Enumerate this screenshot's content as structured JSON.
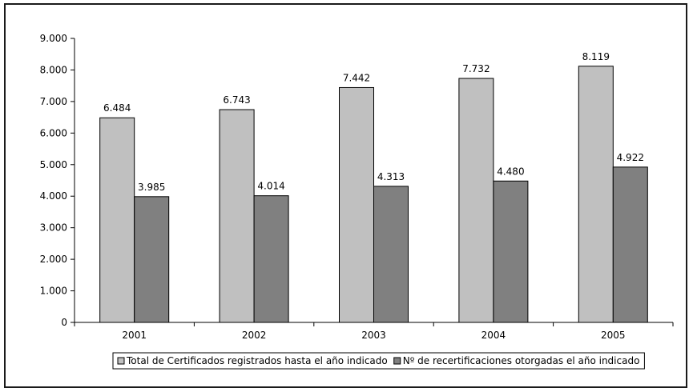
{
  "chart_data": {
    "type": "bar",
    "categories": [
      "2001",
      "2002",
      "2003",
      "2004",
      "2005"
    ],
    "series": [
      {
        "name": "Total de Certificados registrados hasta el año indicado",
        "values": [
          6484,
          6743,
          7442,
          7732,
          8119
        ],
        "labels": [
          "6.484",
          "6.743",
          "7.442",
          "7.732",
          "8.119"
        ],
        "color": "#c0c0c0"
      },
      {
        "name": "Nº de recertificaciones otorgadas el año indicado",
        "values": [
          3985,
          4014,
          4313,
          4480,
          4922
        ],
        "labels": [
          "3.985",
          "4.014",
          "4.313",
          "4.480",
          "4.922"
        ],
        "color": "#808080"
      }
    ],
    "ylim": [
      0,
      9000
    ],
    "yticks": [
      0,
      1000,
      2000,
      3000,
      4000,
      5000,
      6000,
      7000,
      8000,
      9000
    ],
    "ytick_labels": [
      "0",
      "1.000",
      "2.000",
      "3.000",
      "4.000",
      "5.000",
      "6.000",
      "7.000",
      "8.000",
      "9.000"
    ],
    "grid": false,
    "legend": "bottom"
  }
}
